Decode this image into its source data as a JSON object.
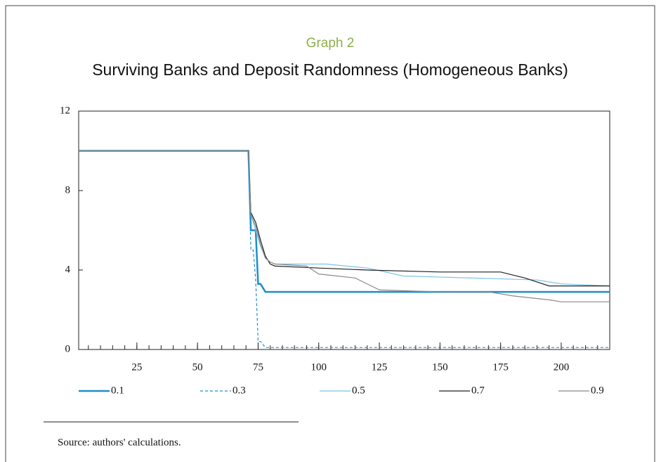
{
  "chart_data": {
    "type": "line",
    "subtitle": "Graph 2",
    "title": "Surviving Banks and Deposit Randomness (Homogeneous Banks)",
    "xlim": [
      1,
      220
    ],
    "ylim": [
      0,
      12
    ],
    "xticks": [
      25,
      50,
      75,
      100,
      125,
      150,
      175,
      200
    ],
    "xminorticks": [
      5,
      10,
      15,
      20,
      25,
      30,
      35,
      40,
      45,
      50,
      55,
      60,
      65,
      70,
      75,
      80,
      85,
      90,
      95,
      100,
      105,
      110,
      115,
      120,
      125,
      130,
      135,
      140,
      145,
      150,
      155,
      160,
      165,
      170,
      175,
      180,
      185,
      190,
      195,
      200,
      205,
      210,
      215
    ],
    "yticks": [
      0,
      4,
      8,
      12
    ],
    "series": [
      {
        "name": "0.1",
        "color": "#1b8fd0",
        "width": 2.5,
        "dashed": false,
        "x": [
          1,
          71,
          72,
          74,
          75,
          76,
          78,
          220
        ],
        "values": [
          10,
          10,
          6,
          6,
          3.3,
          3.3,
          2.9,
          2.9
        ]
      },
      {
        "name": "0.3",
        "color": "#1b8fd0",
        "width": 1.2,
        "dashed": true,
        "x": [
          1,
          71,
          72,
          73,
          74,
          75,
          76,
          78,
          220
        ],
        "values": [
          10,
          10,
          5,
          5,
          3.5,
          0.4,
          0.4,
          0.1,
          0.1
        ]
      },
      {
        "name": "0.5",
        "color": "#7cc4ea",
        "width": 1.2,
        "dashed": false,
        "x": [
          1,
          71,
          72,
          74,
          76,
          78,
          80,
          82,
          103,
          120,
          135,
          190,
          200,
          220
        ],
        "values": [
          10,
          10,
          6.8,
          6,
          5.2,
          4.6,
          4.4,
          4.3,
          4.3,
          4.1,
          3.7,
          3.5,
          3.3,
          3.2
        ]
      },
      {
        "name": "0.7",
        "color": "#222222",
        "width": 1.2,
        "dashed": false,
        "x": [
          1,
          71,
          72,
          74,
          76,
          78,
          80,
          82,
          100,
          120,
          150,
          175,
          185,
          195,
          220
        ],
        "values": [
          10,
          10,
          6.9,
          6.4,
          5.5,
          4.7,
          4.3,
          4.2,
          4.1,
          4.0,
          3.9,
          3.9,
          3.6,
          3.2,
          3.2
        ]
      },
      {
        "name": "0.9",
        "color": "#8a8a8a",
        "width": 1.2,
        "dashed": false,
        "x": [
          1,
          71,
          72,
          74,
          76,
          78,
          80,
          82,
          95,
          100,
          115,
          125,
          150,
          170,
          180,
          195,
          200,
          220
        ],
        "values": [
          10,
          10,
          6.8,
          6.2,
          5.3,
          4.6,
          4.4,
          4.3,
          4.2,
          3.8,
          3.6,
          3.0,
          2.9,
          2.9,
          2.7,
          2.5,
          2.4,
          2.4
        ]
      }
    ],
    "source": "Source:  authors' calculations."
  }
}
